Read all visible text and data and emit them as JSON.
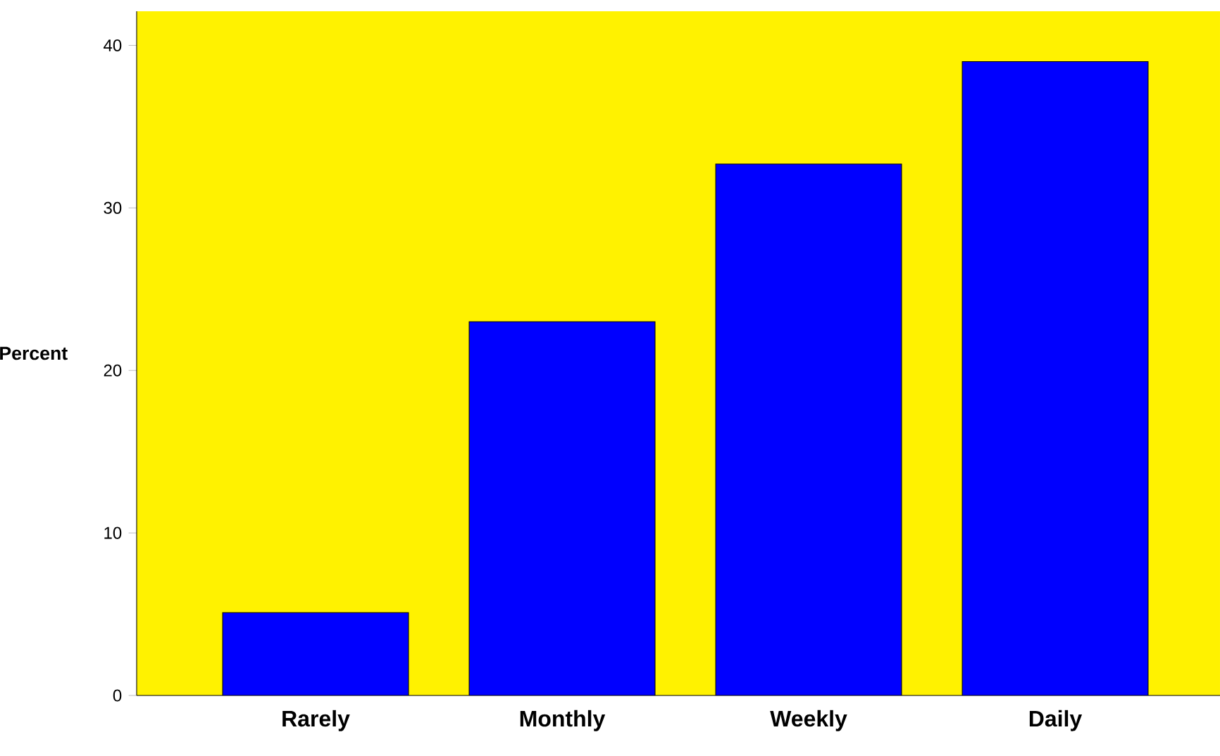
{
  "chart_data": {
    "type": "bar",
    "ylabel": "Percent",
    "categories": [
      "Rarely",
      "Monthly",
      "Weekly",
      "Daily"
    ],
    "values": [
      5.1,
      23.0,
      32.7,
      39.0
    ],
    "color": "#0000ff",
    "ylim": [
      0,
      42.1
    ],
    "yticks": [
      0,
      10,
      20,
      30,
      40
    ],
    "grid": false
  }
}
